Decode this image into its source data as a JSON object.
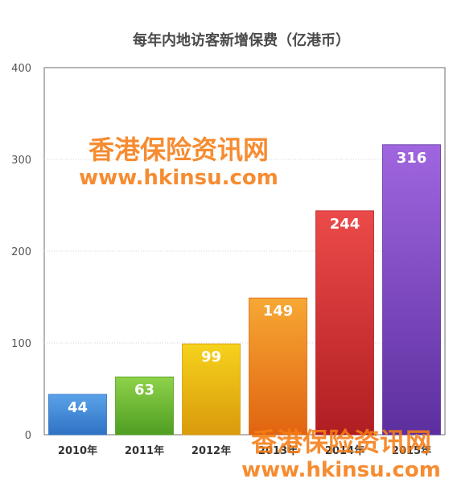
{
  "chart_data": {
    "type": "bar",
    "title": "每年内地访客新增保费（亿港币）",
    "xlabel": "",
    "ylabel": "",
    "categories": [
      "2010年",
      "2011年",
      "2012年",
      "2013年",
      "2014年",
      "2015年"
    ],
    "values": [
      44,
      63,
      99,
      149,
      244,
      316
    ],
    "ylim": [
      0,
      400
    ],
    "yticks": [
      "0",
      "100",
      "200",
      "300",
      "400"
    ],
    "grid": true,
    "legend": "none",
    "bar_colors": [
      [
        "#5aa2e8",
        "#2f72c4"
      ],
      [
        "#8ed24a",
        "#4f9e22"
      ],
      [
        "#f6d21c",
        "#d99a0c"
      ],
      [
        "#f7a834",
        "#e06410"
      ],
      [
        "#ec4a4a",
        "#b01e22"
      ],
      [
        "#a066df",
        "#5c2f9e"
      ]
    ]
  },
  "watermark": {
    "name": "香港保险资讯网",
    "url": "www.hkinsu.com",
    "color": "#f57c14"
  }
}
